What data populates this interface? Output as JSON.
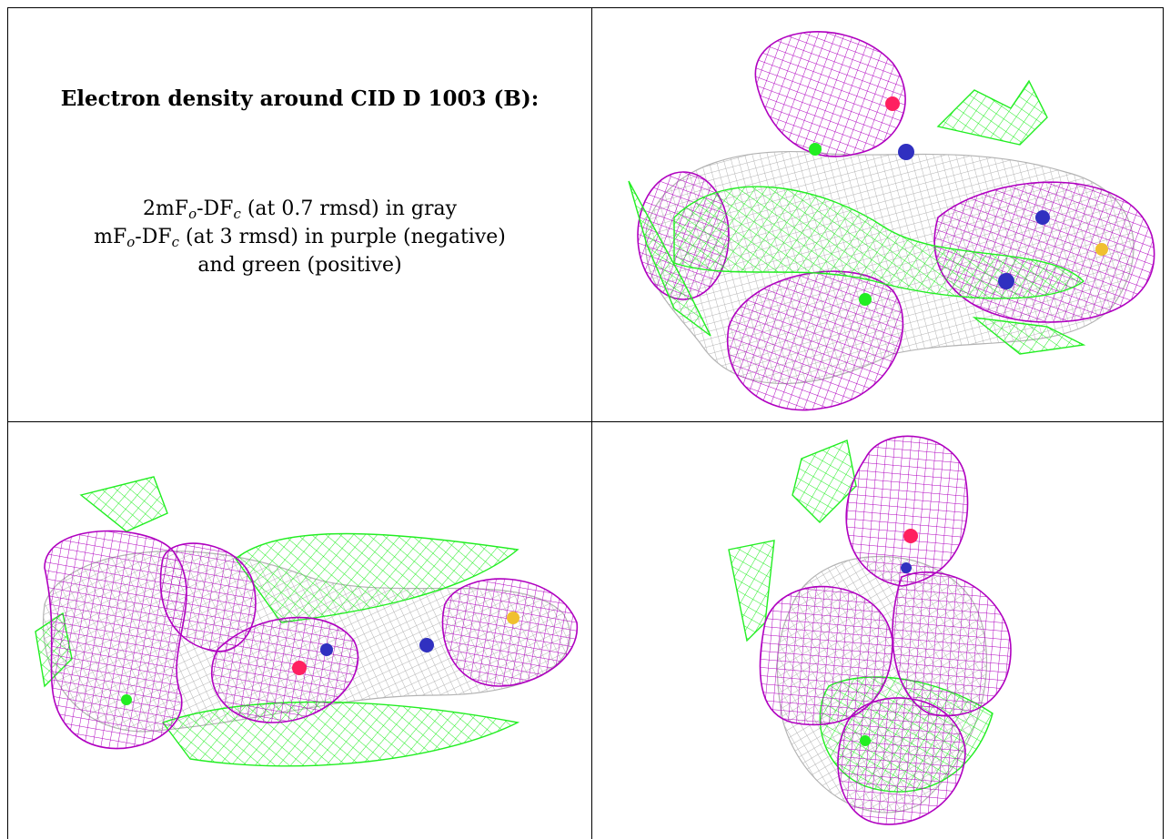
{
  "caption": {
    "title": "Electron density around CID D 1003 (B):",
    "line1": {
      "prefix": "2mF",
      "sub1": "o",
      "mid": "-DF",
      "sub2": "c",
      "suffix": " (at 0.7 rmsd) in gray"
    },
    "line2": {
      "prefix": "mF",
      "sub1": "o",
      "mid": "-DF",
      "sub2": "c",
      "suffix": " (at 3 rmsd) in purple (negative)"
    },
    "line3": "and green (positive)"
  },
  "colors": {
    "two_fo_fc": "#b3b3b3",
    "negative": "#b000c0",
    "positive": "#22ee22",
    "oxygen": "#ff2060",
    "nitrogen": "#3030c0",
    "sulfur": "#f0c030",
    "border": "#000000"
  },
  "panels": [
    {
      "name": "top-right",
      "view": "view-1"
    },
    {
      "name": "bottom-left",
      "view": "view-2"
    },
    {
      "name": "bottom-right",
      "view": "view-3"
    }
  ]
}
